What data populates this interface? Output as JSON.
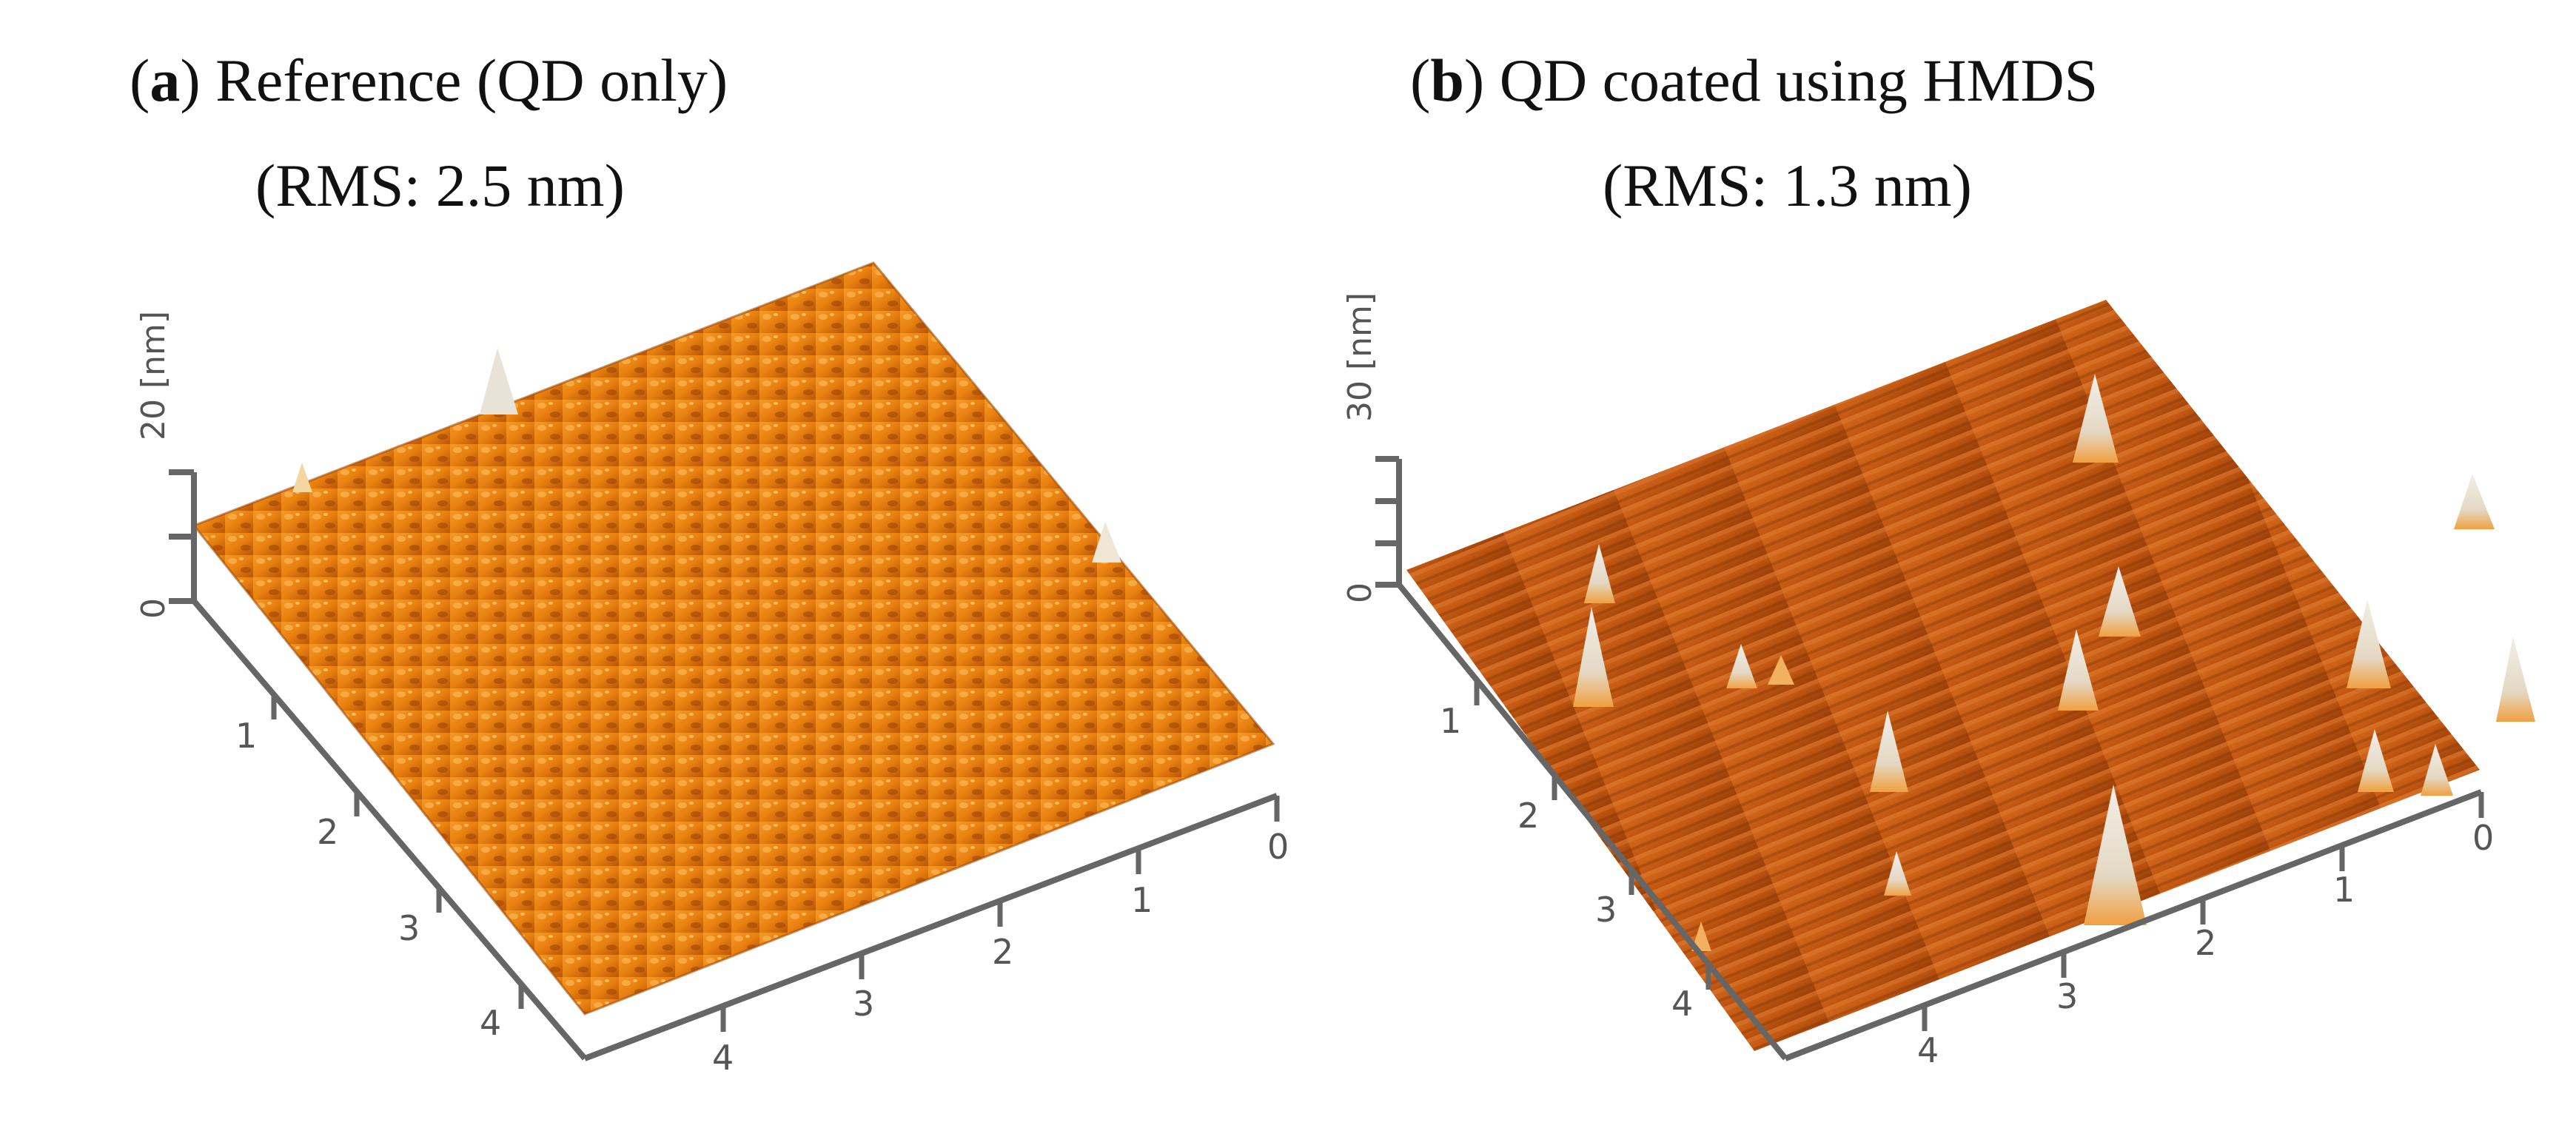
{
  "panels": [
    {
      "id": "a",
      "letter": "a",
      "title_rest": ") Reference (QD only)",
      "subtitle": "(RMS: 2.5 nm)",
      "z_unit": "[nm]",
      "z_max": "20",
      "z_min": "0",
      "y_ticks": [
        "1",
        "2",
        "3",
        "4"
      ],
      "x_ticks": [
        "0",
        "1",
        "2",
        "3",
        "4"
      ],
      "surface_color": "#e87c10"
    },
    {
      "id": "b",
      "letter": "b",
      "title_rest": ") QD coated using HMDS",
      "subtitle": "(RMS: 1.3 nm)",
      "z_unit": "[nm]",
      "z_max": "30",
      "z_min": "0",
      "y_ticks": [
        "1",
        "2",
        "3",
        "4"
      ],
      "x_ticks": [
        "0",
        "1",
        "2",
        "3",
        "4"
      ],
      "surface_color": "#c85a12"
    }
  ]
}
